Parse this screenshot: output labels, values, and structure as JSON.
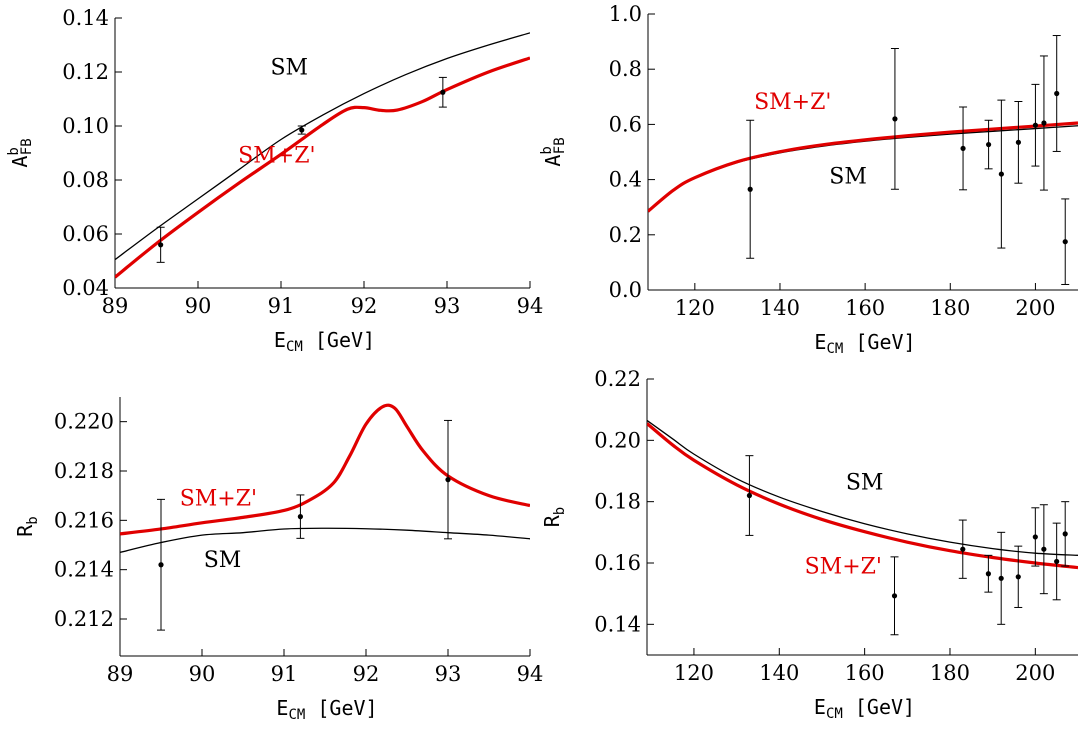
{
  "chart_data": [
    {
      "id": "p1",
      "type": "line",
      "ylabel_main": "A",
      "ylabel_sup": "b",
      "ylabel_sub": "FB",
      "xlabel_main": "E",
      "xlabel_sub": "CM",
      "xlabel_unit": "[GeV]",
      "xlim": [
        89,
        94
      ],
      "ylim": [
        0.04,
        0.14
      ],
      "xticks": [
        89,
        90,
        91,
        92,
        93,
        94
      ],
      "xtick_labels": [
        "89",
        "90",
        "91",
        "92",
        "93",
        "94"
      ],
      "yticks": [
        0.04,
        0.06,
        0.08,
        0.1,
        0.12,
        0.14
      ],
      "ytick_labels": [
        "0.04",
        "0.06",
        "0.08",
        "0.10",
        "0.12",
        "0.14"
      ],
      "series": [
        {
          "name": "SM",
          "color": "#000000",
          "x": [
            89.0,
            89.5,
            90.0,
            90.5,
            91.0,
            91.5,
            92.0,
            92.5,
            93.0,
            93.5,
            94.0
          ],
          "y": [
            0.0505,
            0.062,
            0.073,
            0.084,
            0.095,
            0.104,
            0.112,
            0.119,
            0.125,
            0.13,
            0.1345
          ]
        },
        {
          "name": "SM+Z'",
          "color": "#e00000",
          "x": [
            89.0,
            89.5,
            90.0,
            90.5,
            91.0,
            91.5,
            91.8,
            92.0,
            92.2,
            92.4,
            92.7,
            93.0,
            93.5,
            94.0
          ],
          "y": [
            0.044,
            0.0565,
            0.068,
            0.079,
            0.0895,
            0.1005,
            0.1062,
            0.1068,
            0.1058,
            0.1059,
            0.109,
            0.1135,
            0.12,
            0.1252
          ]
        }
      ],
      "points": [
        {
          "x": 89.55,
          "y": 0.056,
          "err": 0.0065
        },
        {
          "x": 91.25,
          "y": 0.0985,
          "err": 0.0015
        },
        {
          "x": 92.95,
          "y": 0.1125,
          "err": 0.0055
        }
      ],
      "annotations": [
        {
          "text": "SM",
          "x": 91.1,
          "y": 0.119,
          "color": "#000000"
        },
        {
          "text": "SM+Z'",
          "x": 90.95,
          "y": 0.0865,
          "color": "#e00000"
        }
      ]
    },
    {
      "id": "p2",
      "type": "line",
      "ylabel_main": "A",
      "ylabel_sup": "b",
      "ylabel_sub": "FB",
      "xlabel_main": "E",
      "xlabel_sub": "CM",
      "xlabel_unit": "[GeV]",
      "xlim": [
        109,
        210
      ],
      "ylim": [
        0.0,
        1.0
      ],
      "xticks": [
        120,
        140,
        160,
        180,
        200
      ],
      "xtick_labels": [
        "120",
        "140",
        "160",
        "180",
        "200"
      ],
      "yticks": [
        0.0,
        0.2,
        0.4,
        0.6,
        0.8,
        1.0
      ],
      "ytick_labels": [
        "0.0",
        "0.2",
        "0.4",
        "0.6",
        "0.8",
        "1.0"
      ],
      "series": [
        {
          "name": "SM",
          "color": "#000000",
          "x": [
            109,
            115,
            120,
            130,
            140,
            150,
            160,
            170,
            180,
            190,
            200,
            210
          ],
          "y": [
            0.285,
            0.36,
            0.405,
            0.462,
            0.497,
            0.521,
            0.539,
            0.553,
            0.565,
            0.575,
            0.585,
            0.595
          ]
        },
        {
          "name": "SM+Z'",
          "color": "#e00000",
          "x": [
            109,
            115,
            120,
            130,
            140,
            150,
            160,
            170,
            180,
            190,
            200,
            210
          ],
          "y": [
            0.285,
            0.362,
            0.407,
            0.465,
            0.501,
            0.526,
            0.544,
            0.559,
            0.572,
            0.583,
            0.594,
            0.605
          ]
        }
      ],
      "points": [
        {
          "x": 133,
          "y": 0.365,
          "err": 0.25
        },
        {
          "x": 167,
          "y": 0.62,
          "err": 0.255
        },
        {
          "x": 183,
          "y": 0.513,
          "err": 0.15
        },
        {
          "x": 189,
          "y": 0.527,
          "err": 0.088
        },
        {
          "x": 192,
          "y": 0.42,
          "err": 0.268
        },
        {
          "x": 196,
          "y": 0.535,
          "err": 0.148
        },
        {
          "x": 200,
          "y": 0.597,
          "err": 0.148
        },
        {
          "x": 202,
          "y": 0.605,
          "err": 0.243
        },
        {
          "x": 205,
          "y": 0.712,
          "err": 0.21
        },
        {
          "x": 207,
          "y": 0.175,
          "err": 0.155
        }
      ],
      "annotations": [
        {
          "text": "SM+Z'",
          "x": 143,
          "y": 0.655,
          "color": "#e00000"
        },
        {
          "text": "SM",
          "x": 156,
          "y": 0.385,
          "color": "#000000"
        }
      ]
    },
    {
      "id": "p3",
      "type": "line",
      "ylabel_main": "R",
      "ylabel_sup": "",
      "ylabel_sub": "b",
      "xlabel_main": "E",
      "xlabel_sub": "CM",
      "xlabel_unit": "[GeV]",
      "xlim": [
        89,
        94
      ],
      "ylim": [
        0.2105,
        0.221
      ],
      "xticks": [
        89,
        90,
        91,
        92,
        93,
        94
      ],
      "xtick_labels": [
        "89",
        "90",
        "91",
        "92",
        "93",
        "94"
      ],
      "yticks": [
        0.212,
        0.214,
        0.216,
        0.218,
        0.22
      ],
      "ytick_labels": [
        "0.212",
        "0.214",
        "0.216",
        "0.218",
        "0.220"
      ],
      "series": [
        {
          "name": "SM",
          "color": "#000000",
          "x": [
            89.0,
            89.5,
            90.0,
            90.5,
            91.0,
            91.5,
            92.0,
            92.5,
            93.0,
            93.5,
            94.0
          ],
          "y": [
            0.2147,
            0.2151,
            0.2154,
            0.2155,
            0.21565,
            0.21568,
            0.21566,
            0.2156,
            0.2155,
            0.2154,
            0.21525
          ]
        },
        {
          "name": "SM+Z'",
          "color": "#e00000",
          "x": [
            89.0,
            89.5,
            90.0,
            90.5,
            91.0,
            91.3,
            91.6,
            91.8,
            92.0,
            92.2,
            92.35,
            92.5,
            92.7,
            93.0,
            93.5,
            94.0
          ],
          "y": [
            0.21545,
            0.21565,
            0.2159,
            0.21612,
            0.2164,
            0.2168,
            0.2175,
            0.2186,
            0.2199,
            0.2206,
            0.22055,
            0.2198,
            0.2188,
            0.2178,
            0.217,
            0.2166
          ]
        }
      ],
      "points": [
        {
          "x": 89.5,
          "y": 0.2142,
          "err": 0.00265
        },
        {
          "x": 91.2,
          "y": 0.21615,
          "err": 0.00088
        },
        {
          "x": 93.0,
          "y": 0.21765,
          "err": 0.0024
        }
      ],
      "annotations": [
        {
          "text": "SM+Z'",
          "x": 90.2,
          "y": 0.2166,
          "color": "#e00000"
        },
        {
          "text": "SM",
          "x": 90.25,
          "y": 0.2141,
          "color": "#000000"
        }
      ]
    },
    {
      "id": "p4",
      "type": "line",
      "ylabel_main": "R",
      "ylabel_sup": "",
      "ylabel_sub": "b",
      "xlabel_main": "E",
      "xlabel_sub": "CM",
      "xlabel_unit": "[GeV]",
      "xlim": [
        109,
        210
      ],
      "ylim": [
        0.13,
        0.22
      ],
      "xticks": [
        120,
        140,
        160,
        180,
        200
      ],
      "xtick_labels": [
        "120",
        "140",
        "160",
        "180",
        "200"
      ],
      "yticks": [
        0.14,
        0.16,
        0.18,
        0.2,
        0.22
      ],
      "ytick_labels": [
        "0.14",
        "0.16",
        "0.18",
        "0.20",
        "0.22"
      ],
      "series": [
        {
          "name": "SM",
          "color": "#000000",
          "x": [
            109,
            115,
            120,
            130,
            140,
            150,
            160,
            170,
            180,
            190,
            200,
            210
          ],
          "y": [
            0.2065,
            0.2005,
            0.1955,
            0.1875,
            0.1815,
            0.1768,
            0.1728,
            0.1695,
            0.1668,
            0.1647,
            0.1632,
            0.1625
          ]
        },
        {
          "name": "SM+Z'",
          "color": "#e00000",
          "x": [
            109,
            115,
            120,
            130,
            140,
            150,
            160,
            170,
            180,
            190,
            200,
            210
          ],
          "y": [
            0.2055,
            0.1985,
            0.1935,
            0.1855,
            0.1792,
            0.1742,
            0.1702,
            0.1668,
            0.164,
            0.1618,
            0.16,
            0.1585
          ]
        }
      ],
      "points": [
        {
          "x": 133,
          "y": 0.182,
          "err": 0.013
        },
        {
          "x": 167,
          "y": 0.1493,
          "err": 0.0127
        },
        {
          "x": 183,
          "y": 0.1645,
          "err": 0.0095
        },
        {
          "x": 189,
          "y": 0.1565,
          "err": 0.006
        },
        {
          "x": 192,
          "y": 0.155,
          "err": 0.015
        },
        {
          "x": 196,
          "y": 0.1555,
          "err": 0.01
        },
        {
          "x": 200,
          "y": 0.1685,
          "err": 0.0095
        },
        {
          "x": 202,
          "y": 0.1645,
          "err": 0.0145
        },
        {
          "x": 205,
          "y": 0.1605,
          "err": 0.0125
        },
        {
          "x": 207,
          "y": 0.1695,
          "err": 0.0105
        }
      ],
      "annotations": [
        {
          "text": "SM",
          "x": 160,
          "y": 0.184,
          "color": "#000000"
        },
        {
          "text": "SM+Z'",
          "x": 155,
          "y": 0.1565,
          "color": "#e00000"
        }
      ]
    }
  ]
}
